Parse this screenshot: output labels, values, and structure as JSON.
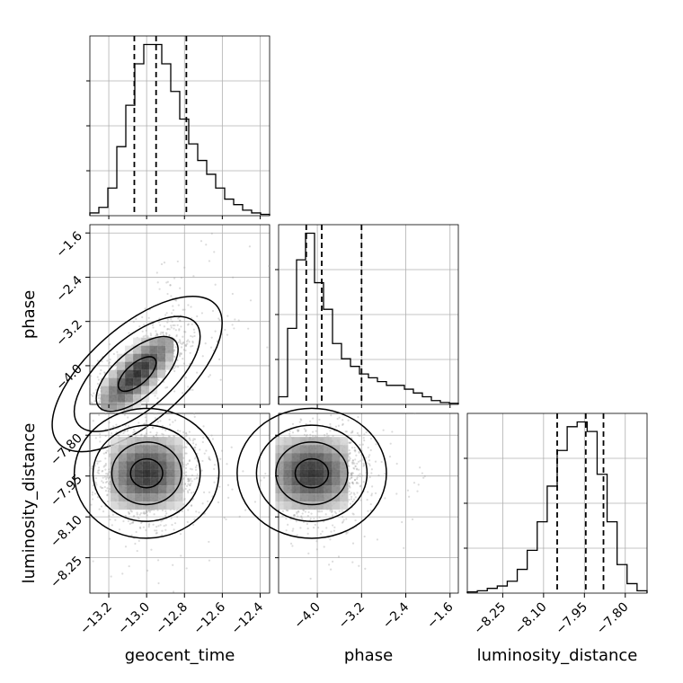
{
  "chart_data": {
    "type": "corner",
    "parameters": [
      "geocent_time",
      "phase",
      "luminosity_distance"
    ],
    "grid": true,
    "histograms": [
      {
        "name": "geocent_time",
        "range": [
          -13.3,
          -12.35
        ],
        "quantiles": [
          -13.065,
          -12.95,
          -12.79
        ],
        "counts": [
          1,
          3,
          10,
          25,
          40,
          55,
          62,
          62,
          55,
          45,
          35,
          26,
          20,
          15,
          10,
          6,
          4,
          2,
          1,
          0.5
        ],
        "ticks": [
          -13.2,
          -13.0,
          -12.8,
          -12.6,
          -12.4
        ],
        "tick_labels": [
          "−13.2",
          "−13.0",
          "−12.8",
          "−12.6",
          "−12.4"
        ]
      },
      {
        "name": "phase",
        "range": [
          -4.7,
          -1.45
        ],
        "quantiles": [
          -4.2,
          -3.92,
          -3.2
        ],
        "counts": [
          2,
          20,
          38,
          45,
          32,
          25,
          16,
          12,
          10,
          8,
          7,
          6,
          5,
          5,
          4,
          3,
          2,
          1,
          0.5,
          0.3
        ],
        "ticks": [
          -4.0,
          -3.2,
          -2.4,
          -1.6
        ],
        "tick_labels": [
          "−4.0",
          "−3.2",
          "−2.4",
          "−1.6"
        ]
      },
      {
        "name": "luminosity_distance",
        "range": [
          -8.38,
          -7.72
        ],
        "quantiles": [
          -8.05,
          -7.945,
          -7.88
        ],
        "counts": [
          0.5,
          1,
          2,
          3,
          5,
          10,
          18,
          30,
          45,
          60,
          70,
          72,
          68,
          50,
          30,
          12,
          4,
          1
        ],
        "ticks": [
          -8.25,
          -8.1,
          -7.95,
          -7.8
        ],
        "tick_labels": [
          "−8.25",
          "−8.10",
          "−7.95",
          "−7.80"
        ]
      }
    ],
    "pairs": [
      {
        "x": "geocent_time",
        "y": "phase",
        "center": [
          -13.05,
          -4.15
        ],
        "correlation": 0.82,
        "y_ticks": [
          -4.0,
          -3.2,
          -2.4,
          -1.6
        ],
        "y_tick_labels": [
          "−4.0",
          "−3.2",
          "−2.4",
          "−1.6"
        ]
      },
      {
        "x": "geocent_time",
        "y": "luminosity_distance",
        "center": [
          -13.0,
          -7.94
        ],
        "correlation": 0.05,
        "y_ticks": [
          -7.8,
          -7.95,
          -8.1,
          -8.25
        ],
        "y_tick_labels": [
          "−7.80",
          "−7.95",
          "−8.10",
          "−8.25"
        ]
      },
      {
        "x": "phase",
        "y": "luminosity_distance",
        "center": [
          -4.1,
          -7.94
        ],
        "correlation": 0.0,
        "y_ticks": [],
        "y_tick_labels": []
      }
    ],
    "xlabels": [
      "geocent_time",
      "phase",
      "luminosity_distance"
    ],
    "ylabels": [
      "phase",
      "luminosity_distance"
    ]
  },
  "colors": {
    "line": "#000000",
    "grid": "#b0b0b0",
    "points": "#9a9a9a"
  }
}
